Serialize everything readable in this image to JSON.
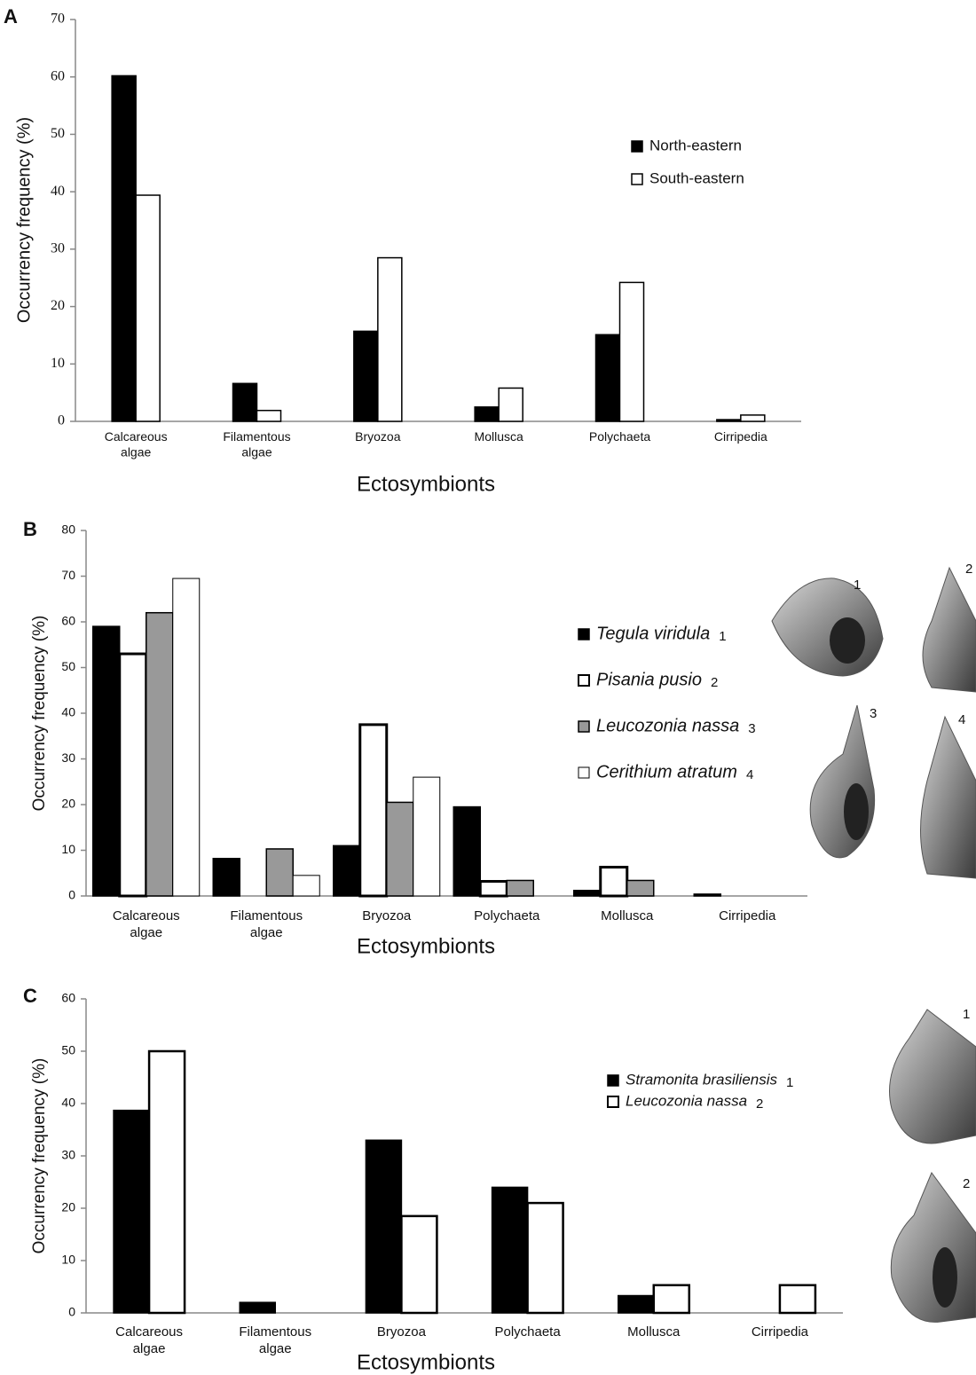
{
  "chart_data": [
    {
      "type": "bar",
      "panel_label": "A",
      "categories": [
        "Calcareous algae",
        "Filamentous algae",
        "Bryozoa",
        "Mollusca",
        "Polychaeta",
        "Cirripedia"
      ],
      "series": [
        {
          "name": "North-eastern",
          "color": "#000000",
          "values": [
            60.2,
            6.6,
            15.7,
            2.5,
            15.1,
            0.3
          ]
        },
        {
          "name": "South-eastern",
          "color": "#ffffff",
          "values": [
            39.4,
            1.9,
            28.5,
            5.8,
            24.2,
            1.1
          ]
        }
      ],
      "ylim": [
        0,
        70
      ],
      "yticks": [
        0,
        10,
        20,
        30,
        40,
        50,
        60,
        70
      ],
      "xlabel": "Ectosymbionts",
      "ylabel": "Occurrency frequency (%)",
      "legend": "right"
    },
    {
      "type": "bar",
      "panel_label": "B",
      "categories": [
        "Calcareous algae",
        "Filamentous algae",
        "Bryozoa",
        "Polychaeta",
        "Mollusca",
        "Cirripedia"
      ],
      "series": [
        {
          "name": "Tegula viridula",
          "tag": "1",
          "color": "#000000",
          "values": [
            59,
            8.2,
            11,
            19.5,
            1.2,
            0.4
          ]
        },
        {
          "name": "Pisania pusio",
          "tag": "2",
          "color": "#ffffff",
          "values": [
            53,
            0,
            37.5,
            3.2,
            6.3,
            0
          ]
        },
        {
          "name": "Leucozonia nassa",
          "tag": "3",
          "color": "#999999",
          "values": [
            62,
            10.3,
            20.5,
            3.4,
            3.4,
            0
          ]
        },
        {
          "name": "Cerithium atratum",
          "tag": "4",
          "color": "#ffffff",
          "values": [
            69.5,
            4.5,
            26,
            0,
            0,
            0
          ]
        }
      ],
      "ylim": [
        0,
        80
      ],
      "yticks": [
        0,
        10,
        20,
        30,
        40,
        50,
        60,
        70,
        80
      ],
      "xlabel": "Ectosymbionts",
      "ylabel": "Occurrency frequency (%)",
      "legend": "right",
      "legend_style": "italic"
    },
    {
      "type": "bar",
      "panel_label": "C",
      "categories": [
        "Calcareous algae",
        "Filamentous algae",
        "Bryozoa",
        "Polychaeta",
        "Mollusca",
        "Cirripedia"
      ],
      "series": [
        {
          "name": "Stramonita brasiliensis",
          "tag": "1",
          "color": "#000000",
          "values": [
            38.7,
            2,
            33,
            24,
            3.3,
            0
          ]
        },
        {
          "name": "Leucozonia nassa",
          "tag": "2",
          "color": "#ffffff",
          "values": [
            50,
            0,
            18.5,
            21,
            5.3,
            5.3
          ]
        }
      ],
      "ylim": [
        0,
        60
      ],
      "yticks": [
        0,
        10,
        20,
        30,
        40,
        50,
        60
      ],
      "xlabel": "Ectosymbionts",
      "ylabel": "Occurrency frequency (%)",
      "legend": "right",
      "legend_style": "italic"
    }
  ]
}
